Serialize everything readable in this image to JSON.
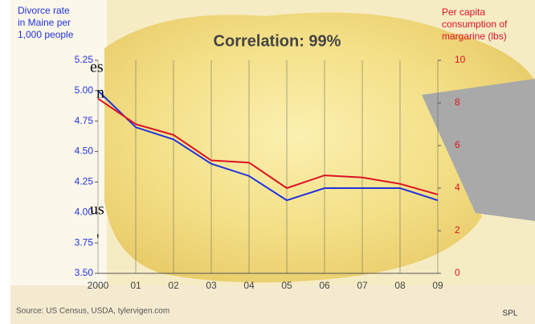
{
  "chart_data": {
    "type": "line",
    "title": "Correlation: 99%",
    "ylabel": [
      "Divorce rate",
      "in Maine per",
      "1,000 people"
    ],
    "y2label": [
      "Per capita",
      "consumption of",
      "margarine (lbs)"
    ],
    "categories": [
      "2000",
      "01",
      "02",
      "03",
      "04",
      "05",
      "06",
      "07",
      "08",
      "09"
    ],
    "series": [
      {
        "color": "#2233dd",
        "values": [
          5.0,
          4.7,
          4.6,
          4.4,
          4.3,
          4.1,
          4.2,
          4.2,
          4.2,
          4.1
        ]
      },
      {
        "color": "#dd1122",
        "axis": "y2",
        "values": [
          8.2,
          7.0,
          6.5,
          5.3,
          5.2,
          4.0,
          4.6,
          4.5,
          4.2,
          3.7
        ]
      }
    ],
    "ylim": [
      3.5,
      5.25
    ],
    "yticks": [
      {
        "value": 3.5,
        "label": "3.50"
      },
      {
        "value": 3.75,
        "label": "3.75"
      },
      {
        "value": 4.0,
        "label": "4.00"
      },
      {
        "value": 4.25,
        "label": "4.25"
      },
      {
        "value": 4.5,
        "label": "4.50"
      },
      {
        "value": 4.75,
        "label": "4.75"
      },
      {
        "value": 5.0,
        "label": "5.00"
      },
      {
        "value": 5.25,
        "label": "5.25"
      }
    ],
    "y2lim": [
      0,
      10
    ],
    "y2ticks": [
      0,
      2,
      4,
      6,
      8,
      10
    ],
    "grid": true,
    "source": "Source: US Census, USDA, tylervigen.com",
    "credit": "SPL"
  },
  "side_text": [
    "es",
    "n",
    "us",
    "'"
  ]
}
